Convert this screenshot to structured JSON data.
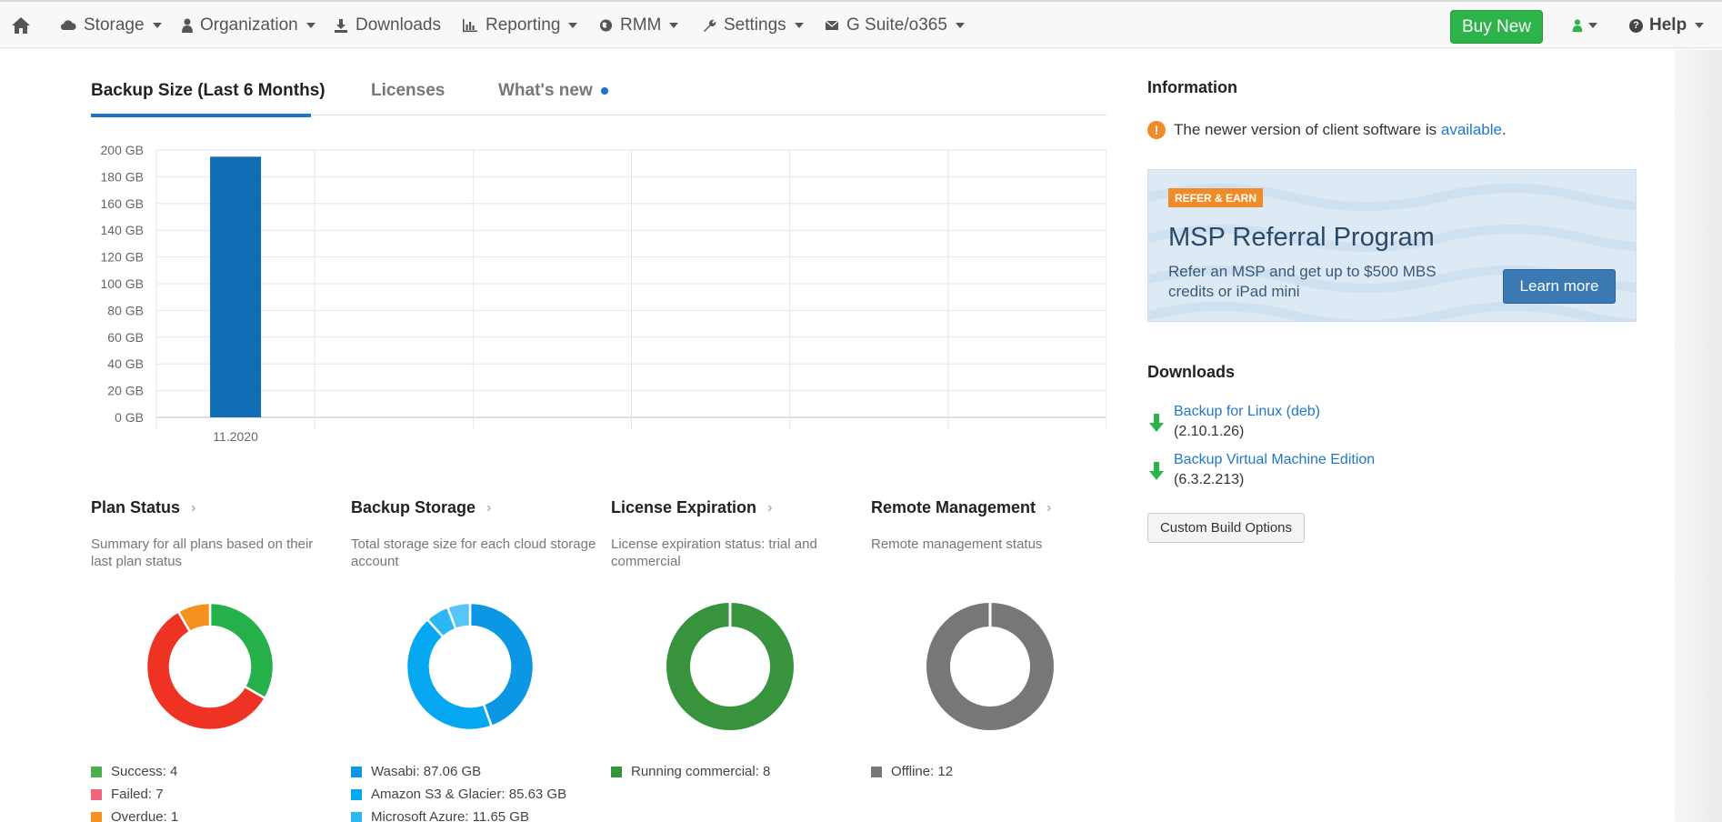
{
  "nav": {
    "items": [
      {
        "label": "Storage",
        "icon": "cloud-icon"
      },
      {
        "label": "Organization",
        "icon": "user-icon"
      },
      {
        "label": "Downloads",
        "icon": "download-icon"
      },
      {
        "label": "Reporting",
        "icon": "bar-chart-icon"
      },
      {
        "label": "RMM",
        "icon": "globe-icon"
      },
      {
        "label": "Settings",
        "icon": "wrench-icon"
      },
      {
        "label": "G Suite/o365",
        "icon": "envelope-icon"
      }
    ],
    "buy_label": "Buy New",
    "help_label": "Help"
  },
  "tabs": [
    {
      "label": "Backup Size (Last 6 Months)"
    },
    {
      "label": "Licenses"
    },
    {
      "label": "What's new"
    }
  ],
  "chart_data": {
    "type": "bar",
    "categories": [
      "11.2020"
    ],
    "values": [
      195
    ],
    "title": "",
    "xlabel": "",
    "ylabel": "",
    "ylim": [
      0,
      200
    ],
    "y_ticks": [
      "0 GB",
      "20 GB",
      "40 GB",
      "60 GB",
      "80 GB",
      "100 GB",
      "120 GB",
      "140 GB",
      "160 GB",
      "180 GB",
      "200 GB"
    ],
    "grid": true,
    "bar_color": "#106db4"
  },
  "sections": [
    {
      "title": "Plan Status",
      "desc": "Summary for all plans based on their last plan status",
      "slices": [
        {
          "label": "Success: 4",
          "value": 4,
          "color": "#25b04a",
          "legend_color": "#4caf50"
        },
        {
          "label": "Failed: 7",
          "value": 7,
          "color": "#ee3324",
          "legend_color": "#f2637c"
        },
        {
          "label": "Overdue: 1",
          "value": 1,
          "color": "#f5911e",
          "legend_color": "#f5911e"
        }
      ]
    },
    {
      "title": "Backup Storage",
      "desc": "Total storage size for each cloud storage account",
      "slices": [
        {
          "label": "Wasabi: 87.06 GB",
          "value": 87.06,
          "color": "#0c97e4",
          "legend_color": "#0c97e4"
        },
        {
          "label": "Amazon S3 & Glacier: 85.63 GB",
          "value": 85.63,
          "color": "#05a8f0",
          "legend_color": "#05a8f0"
        },
        {
          "label": "Microsoft Azure: 11.65 GB",
          "value": 11.65,
          "color": "#2bb7f4",
          "legend_color": "#2bb7f4"
        },
        {
          "label": "",
          "value": 11.3,
          "color": "#57c6f6",
          "legend_color": "#57c6f6"
        }
      ]
    },
    {
      "title": "License Expiration",
      "desc": "License expiration status: trial and commercial",
      "slices": [
        {
          "label": "Running commercial: 8",
          "value": 8,
          "color": "#38943c",
          "legend_color": "#38943c"
        }
      ]
    },
    {
      "title": "Remote Management",
      "desc": "Remote management status",
      "slices": [
        {
          "label": "Offline: 12",
          "value": 12,
          "color": "#777777",
          "legend_color": "#777777"
        }
      ]
    }
  ],
  "info": {
    "title": "Information",
    "text_before": "The newer version of client software is ",
    "link": "available",
    "text_after": "."
  },
  "referral": {
    "badge": "REFER & EARN",
    "title": "MSP Referral Program",
    "text": "Refer an MSP and get up to $500 MBS credits or iPad mini",
    "button": "Learn more"
  },
  "downloads": {
    "title": "Downloads",
    "items": [
      {
        "name": "Backup for Linux (deb)",
        "version": "(2.10.1.26)"
      },
      {
        "name": "Backup Virtual Machine Edition",
        "version": "(6.3.2.213)"
      }
    ],
    "custom_button": "Custom Build Options"
  }
}
